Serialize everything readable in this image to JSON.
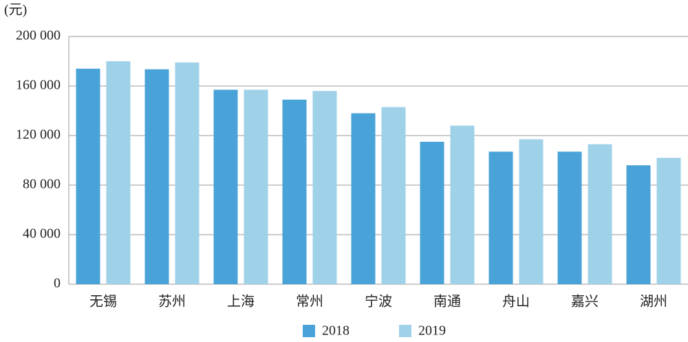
{
  "chart_data": {
    "type": "bar",
    "y_label": "(元)",
    "categories": [
      "无锡",
      "苏州",
      "上海",
      "常州",
      "宁波",
      "南通",
      "舟山",
      "嘉兴",
      "湖州"
    ],
    "series": [
      {
        "name": "2018",
        "color": "#4aa3d8",
        "values": [
          174000,
          173500,
          157000,
          149000,
          138000,
          115000,
          107000,
          107000,
          96000
        ]
      },
      {
        "name": "2019",
        "color": "#9fd1e8",
        "values": [
          180000,
          179000,
          157000,
          156000,
          143000,
          128000,
          117000,
          113000,
          102000
        ]
      }
    ],
    "ylim": [
      0,
      200000
    ],
    "yticks": [
      0,
      {
        "value": 40000,
        "label": "40 000"
      },
      {
        "value": 80000,
        "label": "80 000"
      },
      {
        "value": 120000,
        "label": "120 000"
      },
      {
        "value": 160000,
        "label": "160 000"
      },
      {
        "value": 200000,
        "label": "200 000"
      }
    ],
    "grid": true
  }
}
